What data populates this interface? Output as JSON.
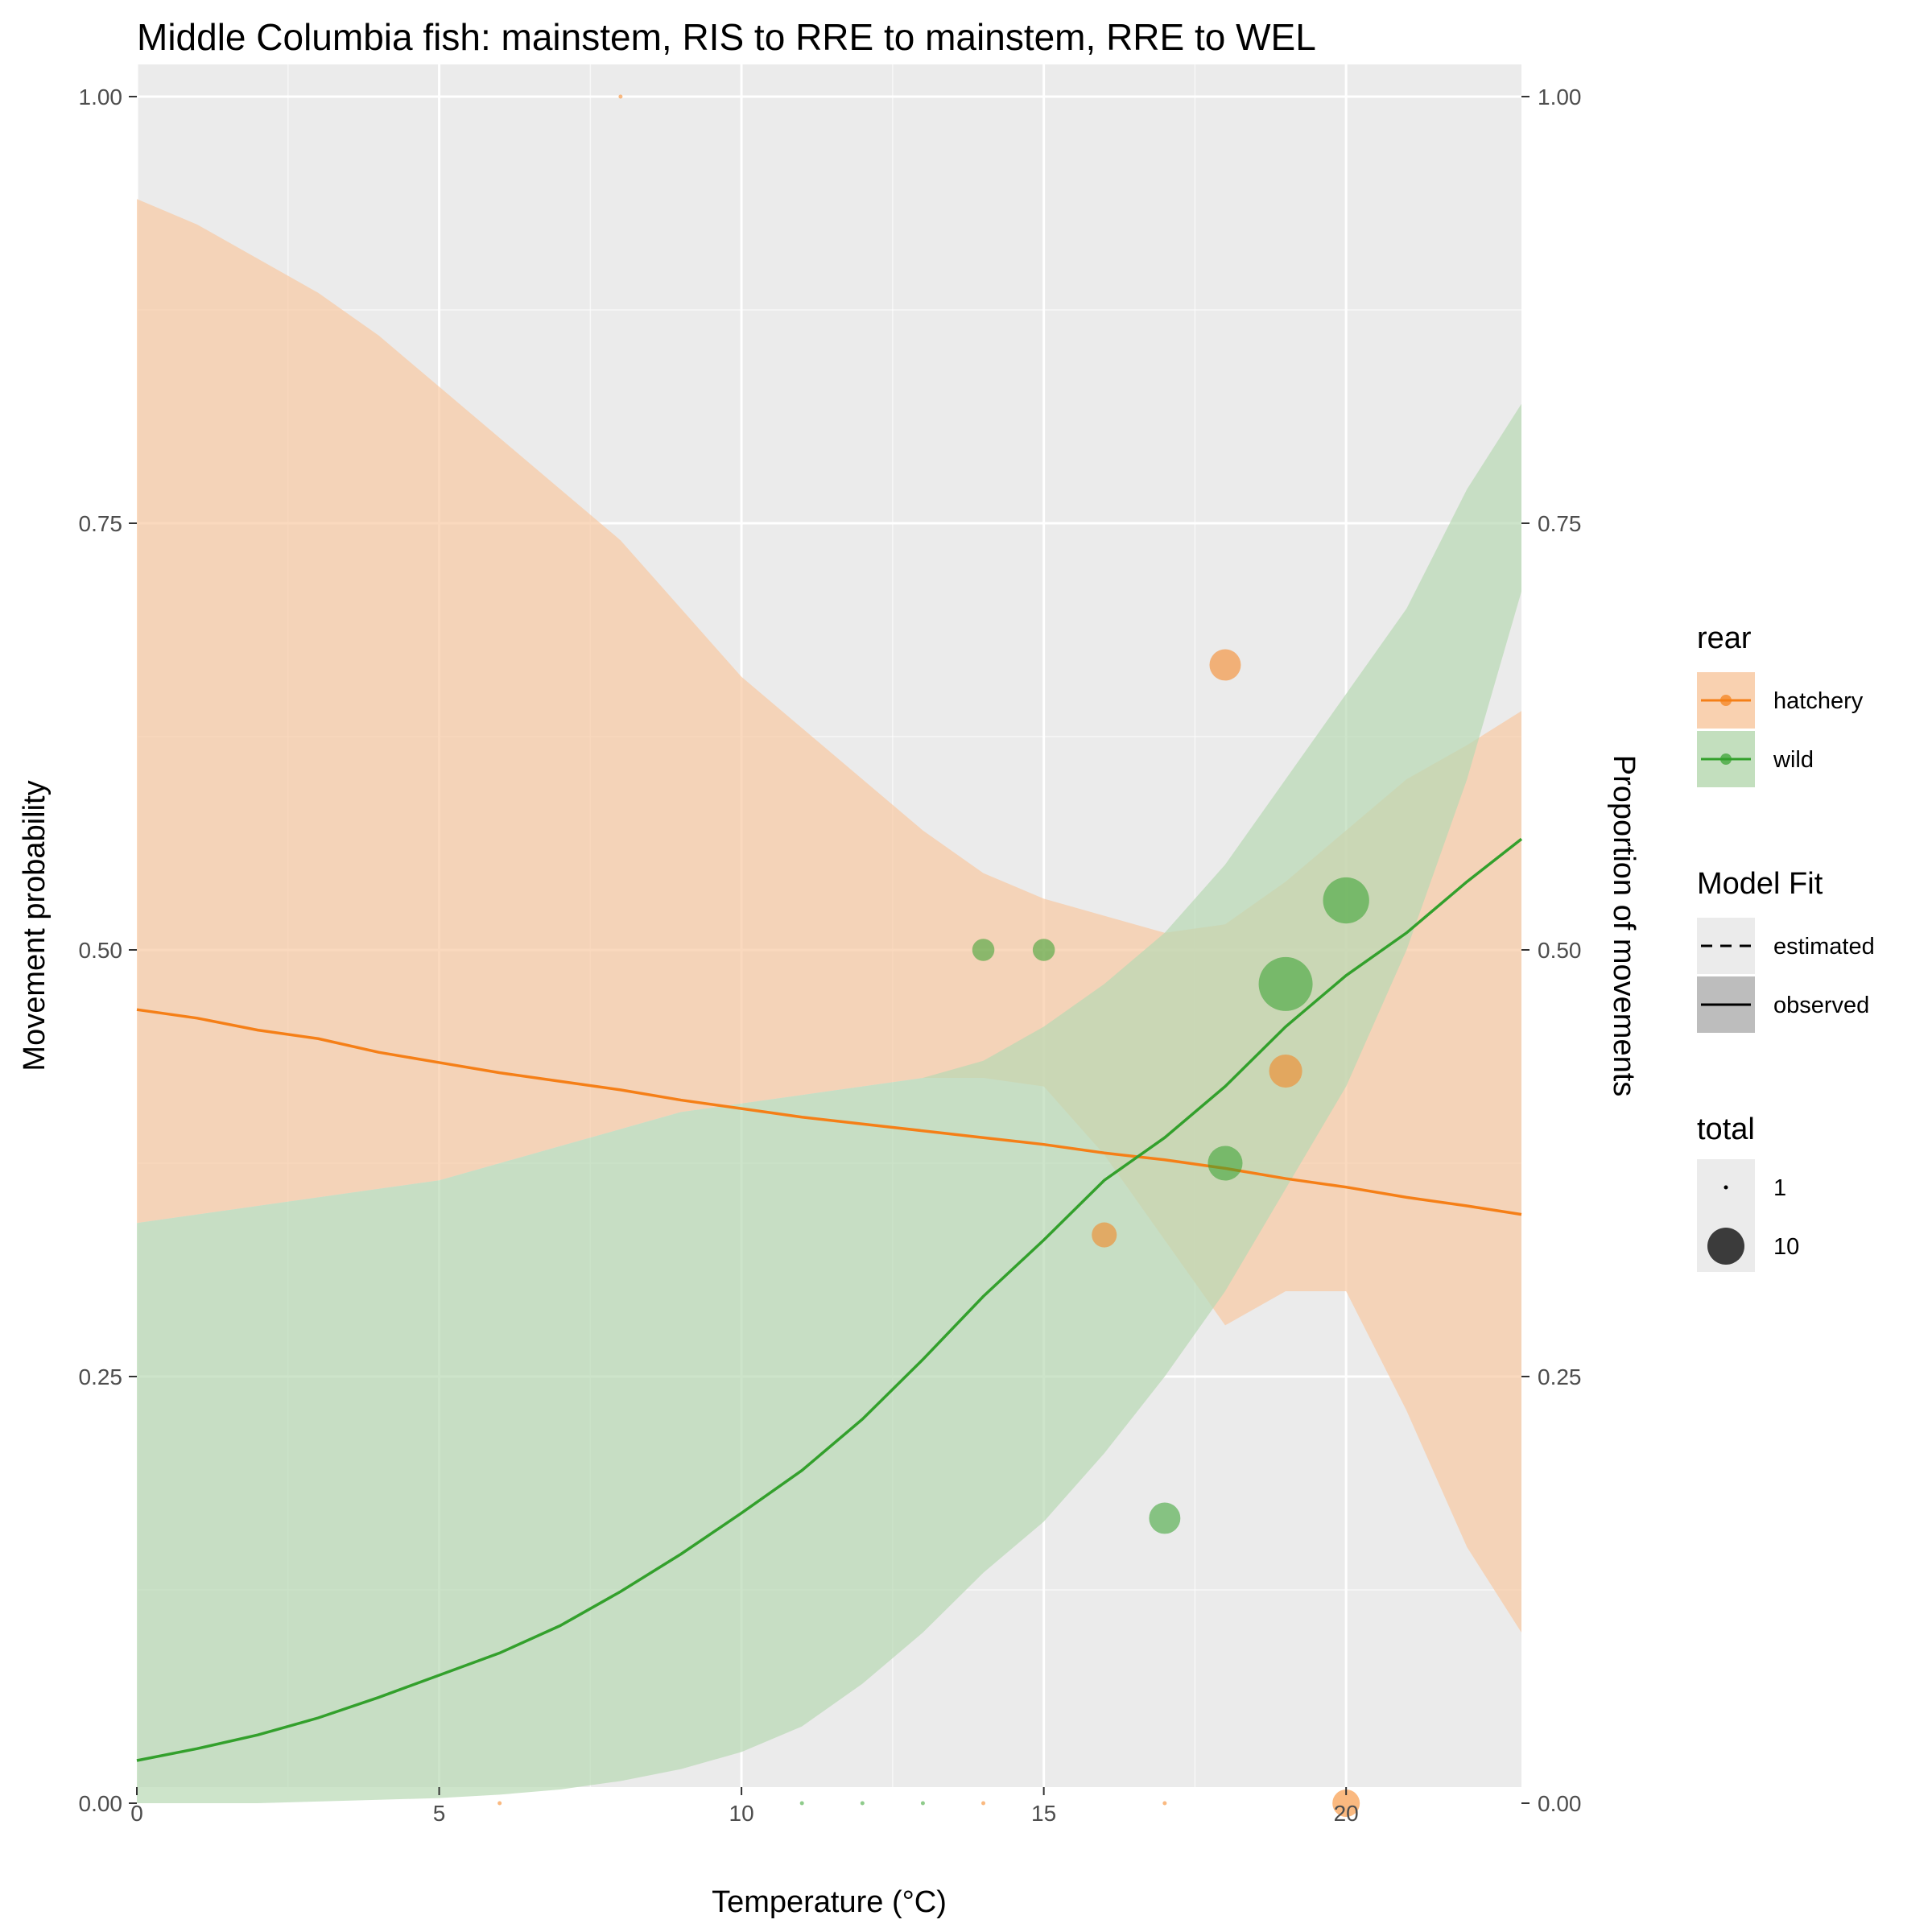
{
  "chart_data": {
    "type": "line",
    "title": "Middle Columbia fish: mainstem, RIS to RRE to mainstem, RRE to WEL",
    "xlabel": "Temperature (°C)",
    "ylabel": "Movement probability",
    "y2label": "Proportion of movements",
    "xlim": [
      0,
      22.9
    ],
    "ylim": [
      0,
      1
    ],
    "x_ticks": [
      0,
      5,
      10,
      15,
      20
    ],
    "x_tick_labels": [
      "0",
      "5",
      "10",
      "15",
      "20"
    ],
    "y_ticks": [
      0,
      0.25,
      0.5,
      0.75,
      1
    ],
    "y_tick_labels": [
      "0.00",
      "0.25",
      "0.50",
      "0.75",
      "1.00"
    ],
    "grid": true,
    "series": [
      {
        "name": "hatchery",
        "color": "#f57f17",
        "fill": "#f8c9a2",
        "line": [
          [
            0,
            0.465
          ],
          [
            1,
            0.46
          ],
          [
            2,
            0.453
          ],
          [
            3,
            0.448
          ],
          [
            4,
            0.44
          ],
          [
            5,
            0.434
          ],
          [
            6,
            0.428
          ],
          [
            7,
            0.423
          ],
          [
            8,
            0.418
          ],
          [
            9,
            0.412
          ],
          [
            10,
            0.407
          ],
          [
            11,
            0.402
          ],
          [
            12,
            0.398
          ],
          [
            13,
            0.394
          ],
          [
            14,
            0.39
          ],
          [
            15,
            0.386
          ],
          [
            16,
            0.381
          ],
          [
            17,
            0.377
          ],
          [
            18,
            0.372
          ],
          [
            19,
            0.366
          ],
          [
            20,
            0.361
          ],
          [
            21,
            0.355
          ],
          [
            22,
            0.35
          ],
          [
            22.9,
            0.345
          ]
        ],
        "ribbon_upper": [
          [
            0,
            0.94
          ],
          [
            1,
            0.925
          ],
          [
            2,
            0.905
          ],
          [
            3,
            0.885
          ],
          [
            4,
            0.86
          ],
          [
            5,
            0.83
          ],
          [
            6,
            0.8
          ],
          [
            7,
            0.77
          ],
          [
            8,
            0.74
          ],
          [
            9,
            0.7
          ],
          [
            10,
            0.66
          ],
          [
            11,
            0.63
          ],
          [
            12,
            0.6
          ],
          [
            13,
            0.57
          ],
          [
            14,
            0.545
          ],
          [
            15,
            0.53
          ],
          [
            16,
            0.52
          ],
          [
            17,
            0.51
          ],
          [
            18,
            0.515
          ],
          [
            19,
            0.54
          ],
          [
            20,
            0.57
          ],
          [
            21,
            0.6
          ],
          [
            22,
            0.62
          ],
          [
            22.9,
            0.64
          ]
        ],
        "ribbon_lower": [
          [
            0,
            0.34
          ],
          [
            1,
            0.345
          ],
          [
            2,
            0.35
          ],
          [
            3,
            0.355
          ],
          [
            4,
            0.36
          ],
          [
            5,
            0.365
          ],
          [
            6,
            0.375
          ],
          [
            7,
            0.385
          ],
          [
            8,
            0.395
          ],
          [
            9,
            0.405
          ],
          [
            10,
            0.41
          ],
          [
            11,
            0.415
          ],
          [
            12,
            0.42
          ],
          [
            13,
            0.425
          ],
          [
            14,
            0.425
          ],
          [
            15,
            0.42
          ],
          [
            16,
            0.38
          ],
          [
            17,
            0.33
          ],
          [
            18,
            0.28
          ],
          [
            19,
            0.3
          ],
          [
            20,
            0.3
          ],
          [
            21,
            0.23
          ],
          [
            22,
            0.15
          ],
          [
            22.9,
            0.1
          ]
        ],
        "points": [
          {
            "x": 6,
            "y": 0.0,
            "total": 1
          },
          {
            "x": 8,
            "y": 1.0,
            "total": 1
          },
          {
            "x": 14,
            "y": 0.0,
            "total": 1
          },
          {
            "x": 16,
            "y": 0.333,
            "total": 3
          },
          {
            "x": 17,
            "y": 0.0,
            "total": 1
          },
          {
            "x": 18,
            "y": 0.667,
            "total": 6
          },
          {
            "x": 19,
            "y": 0.429,
            "total": 7
          },
          {
            "x": 20,
            "y": 0.0,
            "total": 4
          }
        ]
      },
      {
        "name": "wild",
        "color": "#33a02c",
        "fill": "#b8d9b3",
        "line": [
          [
            0,
            0.025
          ],
          [
            1,
            0.032
          ],
          [
            2,
            0.04
          ],
          [
            3,
            0.05
          ],
          [
            4,
            0.062
          ],
          [
            5,
            0.075
          ],
          [
            6,
            0.088
          ],
          [
            7,
            0.104
          ],
          [
            8,
            0.124
          ],
          [
            9,
            0.146
          ],
          [
            10,
            0.17
          ],
          [
            11,
            0.195
          ],
          [
            12,
            0.225
          ],
          [
            13,
            0.26
          ],
          [
            14,
            0.297
          ],
          [
            15,
            0.33
          ],
          [
            16,
            0.365
          ],
          [
            17,
            0.39
          ],
          [
            18,
            0.42
          ],
          [
            19,
            0.455
          ],
          [
            20,
            0.485
          ],
          [
            21,
            0.51
          ],
          [
            22,
            0.54
          ],
          [
            22.9,
            0.565
          ]
        ],
        "ribbon_upper": [
          [
            0,
            0.34
          ],
          [
            1,
            0.345
          ],
          [
            2,
            0.35
          ],
          [
            3,
            0.355
          ],
          [
            4,
            0.36
          ],
          [
            5,
            0.365
          ],
          [
            6,
            0.375
          ],
          [
            7,
            0.385
          ],
          [
            8,
            0.395
          ],
          [
            9,
            0.405
          ],
          [
            10,
            0.41
          ],
          [
            11,
            0.415
          ],
          [
            12,
            0.42
          ],
          [
            13,
            0.425
          ],
          [
            14,
            0.435
          ],
          [
            15,
            0.455
          ],
          [
            16,
            0.48
          ],
          [
            17,
            0.51
          ],
          [
            18,
            0.55
          ],
          [
            19,
            0.6
          ],
          [
            20,
            0.65
          ],
          [
            21,
            0.7
          ],
          [
            22,
            0.77
          ],
          [
            22.9,
            0.82
          ]
        ],
        "ribbon_lower": [
          [
            0,
            0.0
          ],
          [
            1,
            0.0
          ],
          [
            2,
            0.0
          ],
          [
            3,
            0.001
          ],
          [
            4,
            0.002
          ],
          [
            5,
            0.003
          ],
          [
            6,
            0.005
          ],
          [
            7,
            0.008
          ],
          [
            8,
            0.013
          ],
          [
            9,
            0.02
          ],
          [
            10,
            0.03
          ],
          [
            11,
            0.045
          ],
          [
            12,
            0.07
          ],
          [
            13,
            0.1
          ],
          [
            14,
            0.135
          ],
          [
            15,
            0.165
          ],
          [
            16,
            0.205
          ],
          [
            17,
            0.25
          ],
          [
            18,
            0.3
          ],
          [
            19,
            0.36
          ],
          [
            20,
            0.42
          ],
          [
            21,
            0.5
          ],
          [
            22,
            0.6
          ],
          [
            22.9,
            0.71
          ]
        ],
        "points": [
          {
            "x": 11,
            "y": 0.0,
            "total": 1
          },
          {
            "x": 12,
            "y": 0.0,
            "total": 1
          },
          {
            "x": 13,
            "y": 0.0,
            "total": 1
          },
          {
            "x": 14,
            "y": 0.5,
            "total": 2
          },
          {
            "x": 15,
            "y": 0.5,
            "total": 2
          },
          {
            "x": 17,
            "y": 0.167,
            "total": 6
          },
          {
            "x": 18,
            "y": 0.375,
            "total": 8
          },
          {
            "x": 19,
            "y": 0.48,
            "total": 25
          },
          {
            "x": 20,
            "y": 0.529,
            "total": 17
          }
        ]
      }
    ],
    "legends": [
      {
        "title": "rear",
        "entries": [
          "hatchery",
          "wild"
        ]
      },
      {
        "title": "Model Fit",
        "entries": [
          "estimated",
          "observed"
        ]
      },
      {
        "title": "total",
        "entries": [
          "1",
          "10"
        ]
      }
    ]
  }
}
